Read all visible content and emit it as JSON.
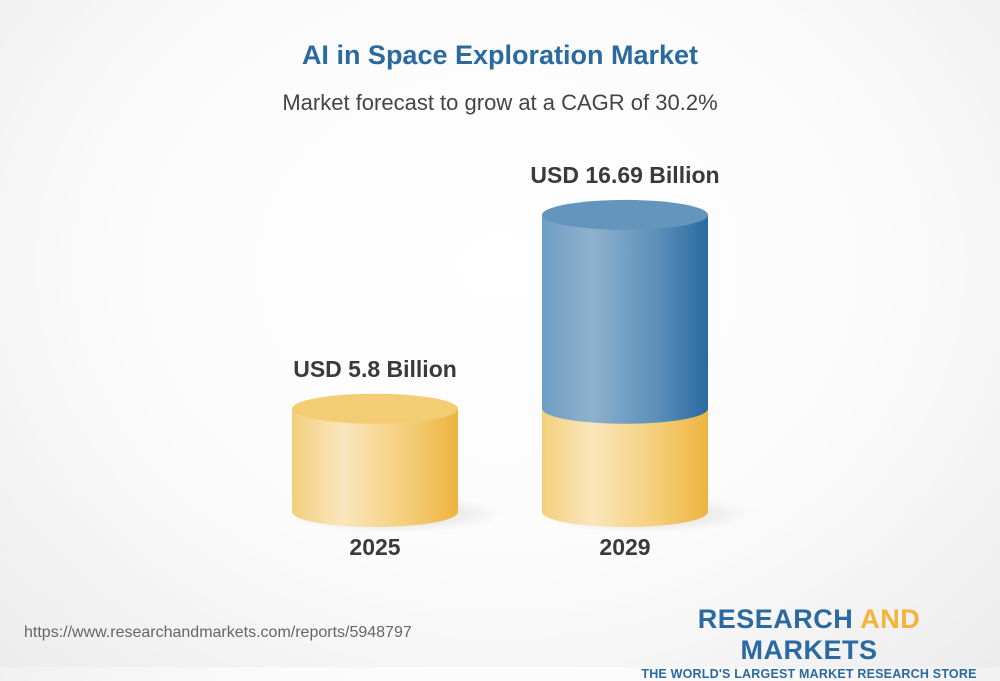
{
  "chart_data": {
    "type": "bar",
    "style": "3d-cylinder",
    "title": "AI in Space Exploration Market",
    "subtitle": "Market forecast to grow at a CAGR of 30.2%",
    "categories": [
      "2025",
      "2029"
    ],
    "values": [
      5.8,
      16.69
    ],
    "data_labels": [
      "USD 5.8 Billion",
      "USD 16.69 Billion"
    ],
    "unit": "USD Billion",
    "colors": {
      "base": "#f2b53a",
      "growth": "#2a6aa0",
      "title": "#2a6aa0"
    },
    "grid": false
  },
  "footer": {
    "url": "https://www.researchandmarkets.com/reports/5948797",
    "logo_line1_a": "RESEARCH ",
    "logo_line1_b": "AND",
    "logo_line1_c": " MARKETS",
    "logo_line2": "THE WORLD'S LARGEST MARKET RESEARCH STORE"
  }
}
